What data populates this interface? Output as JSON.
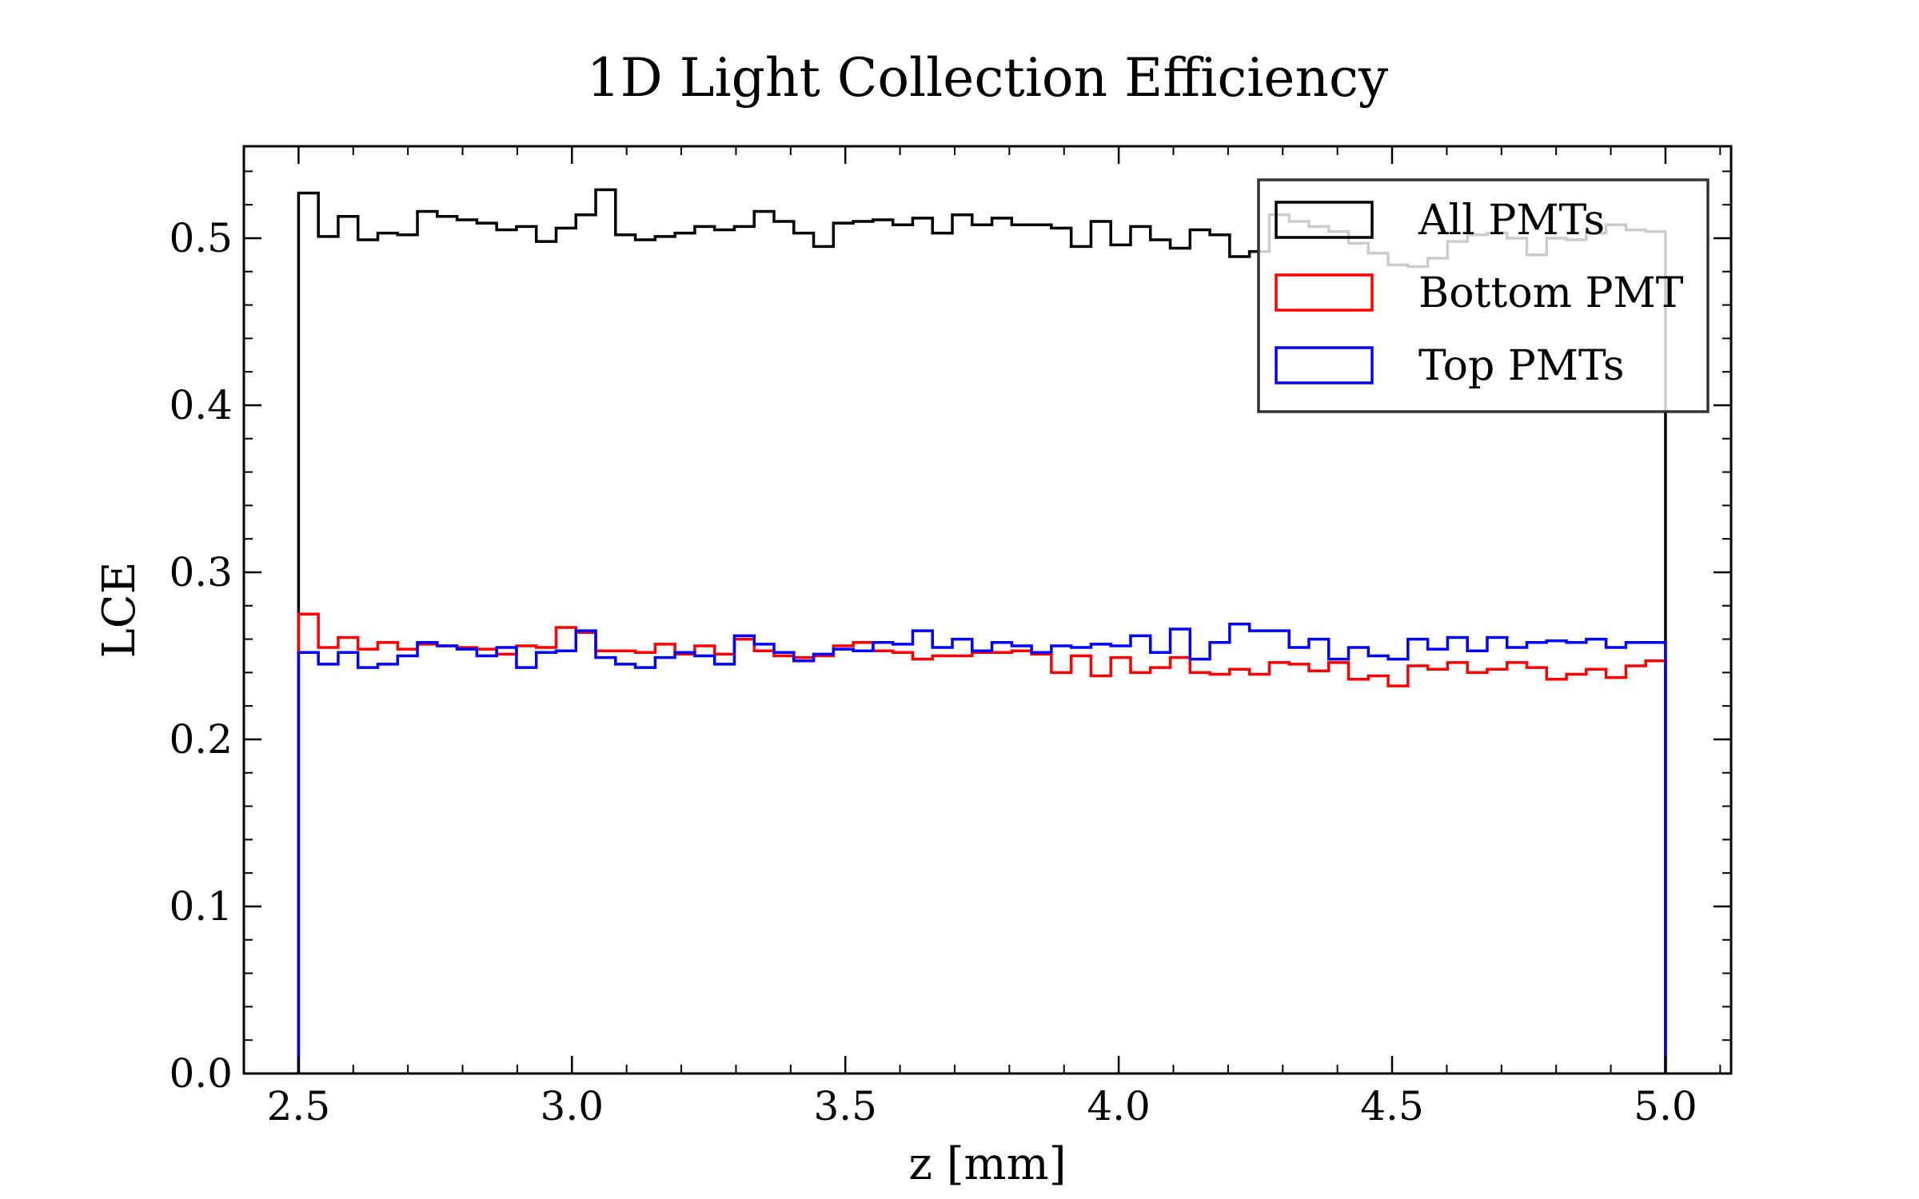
{
  "chart_data": {
    "type": "step",
    "title": "1D Light Collection Efficiency",
    "xlabel": "z [mm]",
    "ylabel": "LCE",
    "xlim": [
      2.4,
      5.12
    ],
    "ylim": [
      0.0,
      0.555
    ],
    "x_ticks": [
      "2.5",
      "3.0",
      "3.5",
      "4.0",
      "4.5",
      "5.0"
    ],
    "y_ticks": [
      "0.0",
      "0.1",
      "0.2",
      "0.3",
      "0.4",
      "0.5"
    ],
    "grid": false,
    "legend_position": "top-right",
    "bin_range": [
      2.5,
      5.0
    ],
    "bins": 69,
    "series": [
      {
        "name": "All PMTs",
        "color": "#000000",
        "values": [
          0.527,
          0.501,
          0.513,
          0.499,
          0.503,
          0.502,
          0.516,
          0.513,
          0.511,
          0.509,
          0.505,
          0.507,
          0.498,
          0.506,
          0.514,
          0.529,
          0.502,
          0.499,
          0.501,
          0.503,
          0.507,
          0.505,
          0.507,
          0.516,
          0.51,
          0.503,
          0.495,
          0.509,
          0.51,
          0.511,
          0.508,
          0.512,
          0.503,
          0.514,
          0.508,
          0.512,
          0.508,
          0.508,
          0.506,
          0.495,
          0.51,
          0.496,
          0.507,
          0.499,
          0.494,
          0.505,
          0.502,
          0.489,
          0.492,
          0.514,
          0.51,
          0.507,
          0.504,
          0.497,
          0.491,
          0.484,
          0.483,
          0.488,
          0.498,
          0.502,
          0.503,
          0.5,
          0.49,
          0.5,
          0.499,
          0.503,
          0.508,
          0.505,
          0.504
        ]
      },
      {
        "name": "Bottom PMT",
        "color": "#ff0000",
        "values": [
          0.275,
          0.255,
          0.261,
          0.254,
          0.258,
          0.254,
          0.257,
          0.256,
          0.255,
          0.254,
          0.251,
          0.256,
          0.255,
          0.267,
          0.264,
          0.253,
          0.253,
          0.252,
          0.257,
          0.251,
          0.256,
          0.251,
          0.26,
          0.253,
          0.25,
          0.249,
          0.25,
          0.256,
          0.258,
          0.253,
          0.252,
          0.248,
          0.25,
          0.25,
          0.252,
          0.252,
          0.253,
          0.251,
          0.24,
          0.25,
          0.238,
          0.249,
          0.24,
          0.243,
          0.249,
          0.24,
          0.239,
          0.242,
          0.239,
          0.246,
          0.245,
          0.241,
          0.246,
          0.236,
          0.238,
          0.232,
          0.244,
          0.242,
          0.246,
          0.24,
          0.242,
          0.246,
          0.243,
          0.236,
          0.239,
          0.242,
          0.237,
          0.244,
          0.247
        ]
      },
      {
        "name": "Top PMTs",
        "color": "#0000ff",
        "values": [
          0.252,
          0.245,
          0.252,
          0.243,
          0.245,
          0.25,
          0.258,
          0.256,
          0.254,
          0.25,
          0.255,
          0.243,
          0.252,
          0.253,
          0.265,
          0.249,
          0.245,
          0.243,
          0.249,
          0.252,
          0.25,
          0.245,
          0.262,
          0.257,
          0.252,
          0.247,
          0.251,
          0.254,
          0.253,
          0.258,
          0.257,
          0.265,
          0.255,
          0.26,
          0.253,
          0.258,
          0.256,
          0.252,
          0.256,
          0.255,
          0.257,
          0.256,
          0.262,
          0.252,
          0.266,
          0.248,
          0.258,
          0.269,
          0.265,
          0.265,
          0.255,
          0.26,
          0.248,
          0.255,
          0.25,
          0.248,
          0.26,
          0.254,
          0.261,
          0.253,
          0.261,
          0.255,
          0.258,
          0.259,
          0.258,
          0.26,
          0.255,
          0.258,
          0.258
        ]
      }
    ]
  }
}
